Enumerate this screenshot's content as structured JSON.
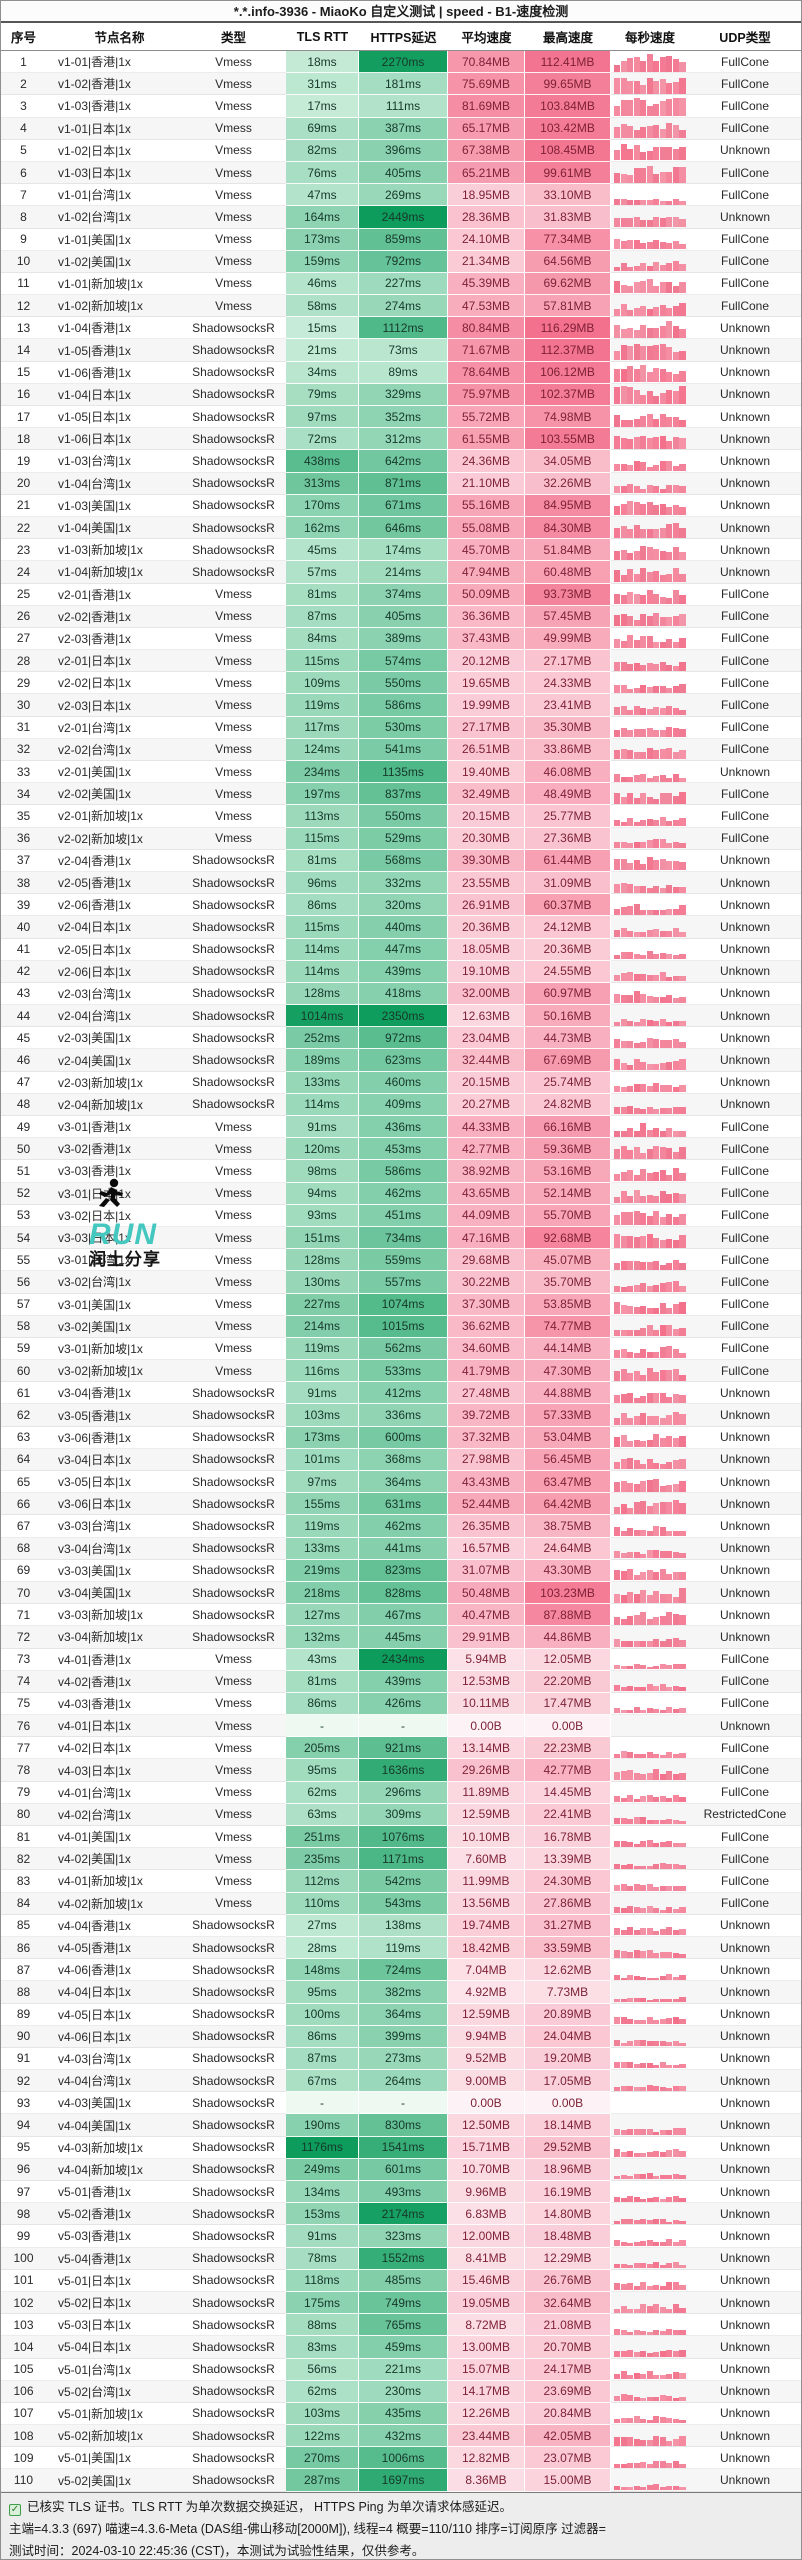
{
  "window": {
    "title": "*.*.info-3936 - MiaoKo 自定义测试 | speed - B1-速度检测"
  },
  "colors": {
    "latency_green_light": "#def6e8",
    "latency_green_dark": "#0d9c5c",
    "speed_pink_light": "#fdf2f5",
    "speed_pink_dark": "#f3708c",
    "spark_bar": "#f57f99",
    "check_green": "#3f9e48"
  },
  "table": {
    "columns": [
      "序号",
      "节点名称",
      "类型",
      "TLS RTT",
      "HTTPS延迟",
      "平均速度",
      "最高速度",
      "每秒速度",
      "UDP类型"
    ],
    "rows": [
      [
        "1",
        "v1-01|香港|1x",
        "Vmess",
        "18ms",
        "2270ms",
        "70.84MB",
        "112.41MB",
        "FullCone"
      ],
      [
        "2",
        "v1-02|香港|1x",
        "Vmess",
        "31ms",
        "181ms",
        "75.69MB",
        "99.65MB",
        "FullCone"
      ],
      [
        "3",
        "v1-03|香港|1x",
        "Vmess",
        "17ms",
        "111ms",
        "81.69MB",
        "103.84MB",
        "FullCone"
      ],
      [
        "4",
        "v1-01|日本|1x",
        "Vmess",
        "69ms",
        "387ms",
        "65.17MB",
        "103.42MB",
        "FullCone"
      ],
      [
        "5",
        "v1-02|日本|1x",
        "Vmess",
        "82ms",
        "396ms",
        "67.38MB",
        "108.45MB",
        "Unknown"
      ],
      [
        "6",
        "v1-03|日本|1x",
        "Vmess",
        "76ms",
        "405ms",
        "65.21MB",
        "99.61MB",
        "FullCone"
      ],
      [
        "7",
        "v1-01|台湾|1x",
        "Vmess",
        "47ms",
        "269ms",
        "18.95MB",
        "33.10MB",
        "FullCone"
      ],
      [
        "8",
        "v1-02|台湾|1x",
        "Vmess",
        "164ms",
        "2449ms",
        "28.36MB",
        "31.83MB",
        "Unknown"
      ],
      [
        "9",
        "v1-01|美国|1x",
        "Vmess",
        "173ms",
        "859ms",
        "24.10MB",
        "77.34MB",
        "FullCone"
      ],
      [
        "10",
        "v1-02|美国|1x",
        "Vmess",
        "159ms",
        "792ms",
        "21.34MB",
        "64.56MB",
        "FullCone"
      ],
      [
        "11",
        "v1-01|新加坡|1x",
        "Vmess",
        "46ms",
        "227ms",
        "45.39MB",
        "69.62MB",
        "FullCone"
      ],
      [
        "12",
        "v1-02|新加坡|1x",
        "Vmess",
        "58ms",
        "274ms",
        "47.53MB",
        "57.81MB",
        "FullCone"
      ],
      [
        "13",
        "v1-04|香港|1x",
        "ShadowsocksR",
        "15ms",
        "1112ms",
        "80.84MB",
        "116.29MB",
        "Unknown"
      ],
      [
        "14",
        "v1-05|香港|1x",
        "ShadowsocksR",
        "21ms",
        "73ms",
        "71.67MB",
        "112.37MB",
        "Unknown"
      ],
      [
        "15",
        "v1-06|香港|1x",
        "ShadowsocksR",
        "34ms",
        "89ms",
        "78.64MB",
        "106.12MB",
        "Unknown"
      ],
      [
        "16",
        "v1-04|日本|1x",
        "ShadowsocksR",
        "79ms",
        "329ms",
        "75.97MB",
        "102.37MB",
        "Unknown"
      ],
      [
        "17",
        "v1-05|日本|1x",
        "ShadowsocksR",
        "97ms",
        "352ms",
        "55.72MB",
        "74.98MB",
        "Unknown"
      ],
      [
        "18",
        "v1-06|日本|1x",
        "ShadowsocksR",
        "72ms",
        "312ms",
        "61.55MB",
        "103.55MB",
        "Unknown"
      ],
      [
        "19",
        "v1-03|台湾|1x",
        "ShadowsocksR",
        "438ms",
        "642ms",
        "24.36MB",
        "34.05MB",
        "Unknown"
      ],
      [
        "20",
        "v1-04|台湾|1x",
        "ShadowsocksR",
        "313ms",
        "871ms",
        "21.10MB",
        "32.26MB",
        "Unknown"
      ],
      [
        "21",
        "v1-03|美国|1x",
        "ShadowsocksR",
        "170ms",
        "671ms",
        "55.16MB",
        "84.95MB",
        "Unknown"
      ],
      [
        "22",
        "v1-04|美国|1x",
        "ShadowsocksR",
        "162ms",
        "646ms",
        "55.08MB",
        "84.30MB",
        "Unknown"
      ],
      [
        "23",
        "v1-03|新加坡|1x",
        "ShadowsocksR",
        "45ms",
        "174ms",
        "45.70MB",
        "51.84MB",
        "Unknown"
      ],
      [
        "24",
        "v1-04|新加坡|1x",
        "ShadowsocksR",
        "57ms",
        "214ms",
        "47.94MB",
        "60.48MB",
        "Unknown"
      ],
      [
        "25",
        "v2-01|香港|1x",
        "Vmess",
        "81ms",
        "374ms",
        "50.09MB",
        "93.73MB",
        "FullCone"
      ],
      [
        "26",
        "v2-02|香港|1x",
        "Vmess",
        "87ms",
        "405ms",
        "36.36MB",
        "57.45MB",
        "FullCone"
      ],
      [
        "27",
        "v2-03|香港|1x",
        "Vmess",
        "84ms",
        "389ms",
        "37.43MB",
        "49.99MB",
        "FullCone"
      ],
      [
        "28",
        "v2-01|日本|1x",
        "Vmess",
        "115ms",
        "574ms",
        "20.12MB",
        "27.17MB",
        "FullCone"
      ],
      [
        "29",
        "v2-02|日本|1x",
        "Vmess",
        "109ms",
        "550ms",
        "19.65MB",
        "24.33MB",
        "FullCone"
      ],
      [
        "30",
        "v2-03|日本|1x",
        "Vmess",
        "119ms",
        "586ms",
        "19.99MB",
        "23.41MB",
        "FullCone"
      ],
      [
        "31",
        "v2-01|台湾|1x",
        "Vmess",
        "117ms",
        "530ms",
        "27.17MB",
        "35.30MB",
        "FullCone"
      ],
      [
        "32",
        "v2-02|台湾|1x",
        "Vmess",
        "124ms",
        "541ms",
        "26.51MB",
        "33.86MB",
        "FullCone"
      ],
      [
        "33",
        "v2-01|美国|1x",
        "Vmess",
        "234ms",
        "1135ms",
        "19.40MB",
        "46.08MB",
        "Unknown"
      ],
      [
        "34",
        "v2-02|美国|1x",
        "Vmess",
        "197ms",
        "837ms",
        "32.49MB",
        "48.49MB",
        "FullCone"
      ],
      [
        "35",
        "v2-01|新加坡|1x",
        "Vmess",
        "113ms",
        "550ms",
        "20.15MB",
        "25.77MB",
        "FullCone"
      ],
      [
        "36",
        "v2-02|新加坡|1x",
        "Vmess",
        "115ms",
        "529ms",
        "20.30MB",
        "27.36MB",
        "FullCone"
      ],
      [
        "37",
        "v2-04|香港|1x",
        "ShadowsocksR",
        "81ms",
        "568ms",
        "39.30MB",
        "61.44MB",
        "Unknown"
      ],
      [
        "38",
        "v2-05|香港|1x",
        "ShadowsocksR",
        "96ms",
        "332ms",
        "23.55MB",
        "31.09MB",
        "Unknown"
      ],
      [
        "39",
        "v2-06|香港|1x",
        "ShadowsocksR",
        "86ms",
        "320ms",
        "26.91MB",
        "60.37MB",
        "Unknown"
      ],
      [
        "40",
        "v2-04|日本|1x",
        "ShadowsocksR",
        "115ms",
        "440ms",
        "20.36MB",
        "24.12MB",
        "Unknown"
      ],
      [
        "41",
        "v2-05|日本|1x",
        "ShadowsocksR",
        "114ms",
        "447ms",
        "18.05MB",
        "20.36MB",
        "Unknown"
      ],
      [
        "42",
        "v2-06|日本|1x",
        "ShadowsocksR",
        "114ms",
        "439ms",
        "19.10MB",
        "24.55MB",
        "Unknown"
      ],
      [
        "43",
        "v2-03|台湾|1x",
        "ShadowsocksR",
        "128ms",
        "418ms",
        "32.00MB",
        "60.97MB",
        "Unknown"
      ],
      [
        "44",
        "v2-04|台湾|1x",
        "ShadowsocksR",
        "1014ms",
        "2350ms",
        "12.63MB",
        "50.16MB",
        "Unknown"
      ],
      [
        "45",
        "v2-03|美国|1x",
        "ShadowsocksR",
        "252ms",
        "972ms",
        "23.04MB",
        "44.73MB",
        "Unknown"
      ],
      [
        "46",
        "v2-04|美国|1x",
        "ShadowsocksR",
        "189ms",
        "623ms",
        "32.44MB",
        "67.69MB",
        "Unknown"
      ],
      [
        "47",
        "v2-03|新加坡|1x",
        "ShadowsocksR",
        "133ms",
        "460ms",
        "20.15MB",
        "25.74MB",
        "Unknown"
      ],
      [
        "48",
        "v2-04|新加坡|1x",
        "ShadowsocksR",
        "114ms",
        "409ms",
        "20.27MB",
        "24.82MB",
        "Unknown"
      ],
      [
        "49",
        "v3-01|香港|1x",
        "Vmess",
        "91ms",
        "436ms",
        "44.33MB",
        "66.16MB",
        "FullCone"
      ],
      [
        "50",
        "v3-02|香港|1x",
        "Vmess",
        "120ms",
        "453ms",
        "42.77MB",
        "59.36MB",
        "FullCone"
      ],
      [
        "51",
        "v3-03|香港|1x",
        "Vmess",
        "98ms",
        "586ms",
        "38.92MB",
        "53.16MB",
        "FullCone"
      ],
      [
        "52",
        "v3-01|日本|1x",
        "Vmess",
        "94ms",
        "462ms",
        "43.65MB",
        "52.14MB",
        "FullCone"
      ],
      [
        "53",
        "v3-02|日本|1x",
        "Vmess",
        "93ms",
        "451ms",
        "44.09MB",
        "55.70MB",
        "FullCone"
      ],
      [
        "54",
        "v3-03|日本|1x",
        "Vmess",
        "151ms",
        "734ms",
        "47.16MB",
        "92.68MB",
        "FullCone"
      ],
      [
        "55",
        "v3-01|台湾|1x",
        "Vmess",
        "128ms",
        "559ms",
        "29.68MB",
        "45.07MB",
        "FullCone"
      ],
      [
        "56",
        "v3-02|台湾|1x",
        "Vmess",
        "130ms",
        "557ms",
        "30.22MB",
        "35.70MB",
        "FullCone"
      ],
      [
        "57",
        "v3-01|美国|1x",
        "Vmess",
        "227ms",
        "1074ms",
        "37.30MB",
        "53.85MB",
        "FullCone"
      ],
      [
        "58",
        "v3-02|美国|1x",
        "Vmess",
        "214ms",
        "1015ms",
        "36.62MB",
        "74.77MB",
        "FullCone"
      ],
      [
        "59",
        "v3-01|新加坡|1x",
        "Vmess",
        "119ms",
        "562ms",
        "34.60MB",
        "44.14MB",
        "FullCone"
      ],
      [
        "60",
        "v3-02|新加坡|1x",
        "Vmess",
        "116ms",
        "533ms",
        "41.79MB",
        "47.30MB",
        "FullCone"
      ],
      [
        "61",
        "v3-04|香港|1x",
        "ShadowsocksR",
        "91ms",
        "412ms",
        "27.48MB",
        "44.88MB",
        "Unknown"
      ],
      [
        "62",
        "v3-05|香港|1x",
        "ShadowsocksR",
        "103ms",
        "336ms",
        "39.72MB",
        "57.33MB",
        "Unknown"
      ],
      [
        "63",
        "v3-06|香港|1x",
        "ShadowsocksR",
        "173ms",
        "600ms",
        "37.32MB",
        "53.04MB",
        "Unknown"
      ],
      [
        "64",
        "v3-04|日本|1x",
        "ShadowsocksR",
        "101ms",
        "368ms",
        "27.98MB",
        "56.45MB",
        "Unknown"
      ],
      [
        "65",
        "v3-05|日本|1x",
        "ShadowsocksR",
        "97ms",
        "364ms",
        "43.43MB",
        "63.47MB",
        "Unknown"
      ],
      [
        "66",
        "v3-06|日本|1x",
        "ShadowsocksR",
        "155ms",
        "631ms",
        "52.44MB",
        "64.42MB",
        "Unknown"
      ],
      [
        "67",
        "v3-03|台湾|1x",
        "ShadowsocksR",
        "119ms",
        "462ms",
        "26.35MB",
        "38.75MB",
        "Unknown"
      ],
      [
        "68",
        "v3-04|台湾|1x",
        "ShadowsocksR",
        "133ms",
        "441ms",
        "16.57MB",
        "24.64MB",
        "Unknown"
      ],
      [
        "69",
        "v3-03|美国|1x",
        "ShadowsocksR",
        "219ms",
        "823ms",
        "31.07MB",
        "43.30MB",
        "Unknown"
      ],
      [
        "70",
        "v3-04|美国|1x",
        "ShadowsocksR",
        "218ms",
        "828ms",
        "50.48MB",
        "103.23MB",
        "Unknown"
      ],
      [
        "71",
        "v3-03|新加坡|1x",
        "ShadowsocksR",
        "127ms",
        "467ms",
        "40.47MB",
        "87.88MB",
        "Unknown"
      ],
      [
        "72",
        "v3-04|新加坡|1x",
        "ShadowsocksR",
        "132ms",
        "445ms",
        "29.91MB",
        "44.86MB",
        "Unknown"
      ],
      [
        "73",
        "v4-01|香港|1x",
        "Vmess",
        "43ms",
        "2434ms",
        "5.94MB",
        "12.05MB",
        "FullCone"
      ],
      [
        "74",
        "v4-02|香港|1x",
        "Vmess",
        "81ms",
        "439ms",
        "12.53MB",
        "22.20MB",
        "FullCone"
      ],
      [
        "75",
        "v4-03|香港|1x",
        "Vmess",
        "86ms",
        "426ms",
        "10.11MB",
        "17.47MB",
        "FullCone"
      ],
      [
        "76",
        "v4-01|日本|1x",
        "Vmess",
        "-",
        "-",
        "0.00B",
        "0.00B",
        "Unknown"
      ],
      [
        "77",
        "v4-02|日本|1x",
        "Vmess",
        "205ms",
        "921ms",
        "13.14MB",
        "22.23MB",
        "FullCone"
      ],
      [
        "78",
        "v4-03|日本|1x",
        "Vmess",
        "95ms",
        "1636ms",
        "29.26MB",
        "42.77MB",
        "FullCone"
      ],
      [
        "79",
        "v4-01|台湾|1x",
        "Vmess",
        "62ms",
        "296ms",
        "11.89MB",
        "14.45MB",
        "FullCone"
      ],
      [
        "80",
        "v4-02|台湾|1x",
        "Vmess",
        "63ms",
        "309ms",
        "12.59MB",
        "22.41MB",
        "RestrictedCone"
      ],
      [
        "81",
        "v4-01|美国|1x",
        "Vmess",
        "251ms",
        "1076ms",
        "10.10MB",
        "16.78MB",
        "FullCone"
      ],
      [
        "82",
        "v4-02|美国|1x",
        "Vmess",
        "235ms",
        "1171ms",
        "7.60MB",
        "13.39MB",
        "FullCone"
      ],
      [
        "83",
        "v4-01|新加坡|1x",
        "Vmess",
        "112ms",
        "542ms",
        "11.99MB",
        "24.30MB",
        "FullCone"
      ],
      [
        "84",
        "v4-02|新加坡|1x",
        "Vmess",
        "110ms",
        "543ms",
        "13.56MB",
        "27.86MB",
        "FullCone"
      ],
      [
        "85",
        "v4-04|香港|1x",
        "ShadowsocksR",
        "27ms",
        "138ms",
        "19.74MB",
        "31.27MB",
        "Unknown"
      ],
      [
        "86",
        "v4-05|香港|1x",
        "ShadowsocksR",
        "28ms",
        "119ms",
        "18.42MB",
        "33.59MB",
        "Unknown"
      ],
      [
        "87",
        "v4-06|香港|1x",
        "ShadowsocksR",
        "148ms",
        "724ms",
        "7.04MB",
        "12.62MB",
        "Unknown"
      ],
      [
        "88",
        "v4-04|日本|1x",
        "ShadowsocksR",
        "95ms",
        "382ms",
        "4.92MB",
        "7.73MB",
        "Unknown"
      ],
      [
        "89",
        "v4-05|日本|1x",
        "ShadowsocksR",
        "100ms",
        "364ms",
        "12.59MB",
        "20.89MB",
        "Unknown"
      ],
      [
        "90",
        "v4-06|日本|1x",
        "ShadowsocksR",
        "86ms",
        "399ms",
        "9.94MB",
        "24.04MB",
        "Unknown"
      ],
      [
        "91",
        "v4-03|台湾|1x",
        "ShadowsocksR",
        "87ms",
        "273ms",
        "9.52MB",
        "19.20MB",
        "Unknown"
      ],
      [
        "92",
        "v4-04|台湾|1x",
        "ShadowsocksR",
        "67ms",
        "264ms",
        "9.00MB",
        "17.05MB",
        "Unknown"
      ],
      [
        "93",
        "v4-03|美国|1x",
        "ShadowsocksR",
        "-",
        "-",
        "0.00B",
        "0.00B",
        "Unknown"
      ],
      [
        "94",
        "v4-04|美国|1x",
        "ShadowsocksR",
        "190ms",
        "830ms",
        "12.50MB",
        "18.14MB",
        "Unknown"
      ],
      [
        "95",
        "v4-03|新加坡|1x",
        "ShadowsocksR",
        "1176ms",
        "1541ms",
        "15.71MB",
        "29.52MB",
        "Unknown"
      ],
      [
        "96",
        "v4-04|新加坡|1x",
        "ShadowsocksR",
        "249ms",
        "601ms",
        "10.70MB",
        "18.96MB",
        "Unknown"
      ],
      [
        "97",
        "v5-01|香港|1x",
        "ShadowsocksR",
        "134ms",
        "493ms",
        "9.96MB",
        "16.19MB",
        "Unknown"
      ],
      [
        "98",
        "v5-02|香港|1x",
        "ShadowsocksR",
        "153ms",
        "2174ms",
        "6.83MB",
        "14.80MB",
        "Unknown"
      ],
      [
        "99",
        "v5-03|香港|1x",
        "ShadowsocksR",
        "91ms",
        "323ms",
        "12.00MB",
        "18.48MB",
        "Unknown"
      ],
      [
        "100",
        "v5-04|香港|1x",
        "ShadowsocksR",
        "78ms",
        "1552ms",
        "8.41MB",
        "12.29MB",
        "Unknown"
      ],
      [
        "101",
        "v5-01|日本|1x",
        "ShadowsocksR",
        "118ms",
        "485ms",
        "15.46MB",
        "26.76MB",
        "Unknown"
      ],
      [
        "102",
        "v5-02|日本|1x",
        "ShadowsocksR",
        "175ms",
        "749ms",
        "19.05MB",
        "32.64MB",
        "Unknown"
      ],
      [
        "103",
        "v5-03|日本|1x",
        "ShadowsocksR",
        "88ms",
        "765ms",
        "8.72MB",
        "21.08MB",
        "Unknown"
      ],
      [
        "104",
        "v5-04|日本|1x",
        "ShadowsocksR",
        "83ms",
        "459ms",
        "13.00MB",
        "20.70MB",
        "Unknown"
      ],
      [
        "105",
        "v5-01|台湾|1x",
        "ShadowsocksR",
        "56ms",
        "221ms",
        "15.07MB",
        "24.17MB",
        "Unknown"
      ],
      [
        "106",
        "v5-02|台湾|1x",
        "ShadowsocksR",
        "62ms",
        "230ms",
        "14.17MB",
        "23.69MB",
        "Unknown"
      ],
      [
        "107",
        "v5-01|新加坡|1x",
        "ShadowsocksR",
        "103ms",
        "435ms",
        "12.26MB",
        "20.84MB",
        "Unknown"
      ],
      [
        "108",
        "v5-02|新加坡|1x",
        "ShadowsocksR",
        "122ms",
        "432ms",
        "23.44MB",
        "42.05MB",
        "Unknown"
      ],
      [
        "109",
        "v5-01|美国|1x",
        "ShadowsocksR",
        "270ms",
        "1006ms",
        "12.82MB",
        "23.07MB",
        "Unknown"
      ],
      [
        "110",
        "v5-02|美国|1x",
        "ShadowsocksR",
        "287ms",
        "1697ms",
        "8.36MB",
        "15.00MB",
        "Unknown"
      ]
    ]
  },
  "footer": {
    "line1": "已核实 TLS 证书。TLS RTT 为单次数据交换延迟， HTTPS Ping 为单次请求体感延迟。",
    "line2": "主端=4.3.3 (697) 喵速=4.3.6-Meta (DAS组-佛山移动[2000M]), 线程=4 概要=110/110 排序=订阅原序 过滤器=",
    "line3": "测试时间：2024-03-10 22:45:36 (CST)，本测试为试验性结果，仅供参考。",
    "check_label": "✓"
  },
  "watermark": {
    "run": "RUN",
    "share": "润土分享"
  }
}
